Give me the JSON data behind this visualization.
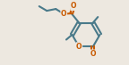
{
  "bg_color": "#ede8e0",
  "bond_color": "#4a7a8a",
  "oxygen_color": "#c85a00",
  "line_width": 1.5,
  "fig_width": 1.44,
  "fig_height": 0.73,
  "dpi": 100,
  "xlim": [
    0,
    14.4
  ],
  "ylim": [
    0,
    7.3
  ]
}
